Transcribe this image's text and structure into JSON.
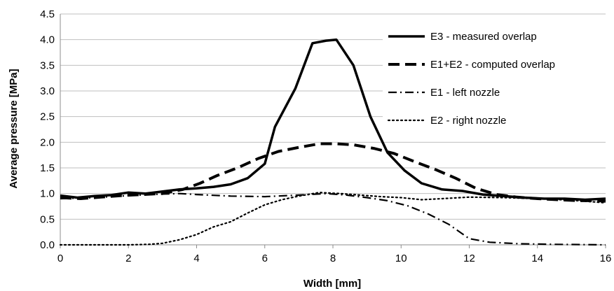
{
  "chart_data": {
    "type": "line",
    "xlabel": "Width [mm]",
    "ylabel": "Average pressure [MPa]",
    "xlim": [
      0,
      16
    ],
    "ylim": [
      0,
      4.5
    ],
    "x_ticks": [
      "0",
      "2",
      "4",
      "6",
      "8",
      "10",
      "12",
      "14",
      "16"
    ],
    "y_ticks": [
      "0.0",
      "0.5",
      "1.0",
      "1.5",
      "2.0",
      "2.5",
      "3.0",
      "3.5",
      "4.0",
      "4.5"
    ],
    "grid": "horizontal",
    "legend_position": "top-right",
    "series": [
      {
        "name": "E3 - measured overlap",
        "style": "solid",
        "points": [
          [
            0,
            0.96
          ],
          [
            0.5,
            0.92
          ],
          [
            1,
            0.95
          ],
          [
            1.5,
            0.97
          ],
          [
            2,
            1.02
          ],
          [
            2.5,
            1.0
          ],
          [
            3,
            1.04
          ],
          [
            3.5,
            1.08
          ],
          [
            4,
            1.1
          ],
          [
            4.5,
            1.13
          ],
          [
            5,
            1.18
          ],
          [
            5.5,
            1.3
          ],
          [
            6,
            1.58
          ],
          [
            6.3,
            2.3
          ],
          [
            6.9,
            3.05
          ],
          [
            7.4,
            3.93
          ],
          [
            7.8,
            3.98
          ],
          [
            8.1,
            4.0
          ],
          [
            8.6,
            3.5
          ],
          [
            9.1,
            2.5
          ],
          [
            9.6,
            1.8
          ],
          [
            10.1,
            1.45
          ],
          [
            10.6,
            1.2
          ],
          [
            11.2,
            1.08
          ],
          [
            11.8,
            1.05
          ],
          [
            12.4,
            0.98
          ],
          [
            13,
            0.95
          ],
          [
            13.6,
            0.92
          ],
          [
            14.2,
            0.9
          ],
          [
            14.8,
            0.9
          ],
          [
            15.4,
            0.88
          ],
          [
            16,
            0.9
          ]
        ]
      },
      {
        "name": "E1+E2 - computed overlap",
        "style": "dashed",
        "points": [
          [
            0,
            0.92
          ],
          [
            0.6,
            0.9
          ],
          [
            1.2,
            0.93
          ],
          [
            1.8,
            0.96
          ],
          [
            2.4,
            0.98
          ],
          [
            3,
            1.0
          ],
          [
            3.6,
            1.08
          ],
          [
            4.1,
            1.2
          ],
          [
            4.6,
            1.35
          ],
          [
            5.2,
            1.5
          ],
          [
            5.8,
            1.68
          ],
          [
            6.4,
            1.82
          ],
          [
            7,
            1.9
          ],
          [
            7.6,
            1.97
          ],
          [
            8.1,
            1.97
          ],
          [
            8.6,
            1.95
          ],
          [
            9.2,
            1.88
          ],
          [
            9.8,
            1.78
          ],
          [
            10.4,
            1.62
          ],
          [
            11,
            1.47
          ],
          [
            11.6,
            1.3
          ],
          [
            12.2,
            1.1
          ],
          [
            12.8,
            0.98
          ],
          [
            13.4,
            0.93
          ],
          [
            14,
            0.9
          ],
          [
            14.6,
            0.88
          ],
          [
            15.2,
            0.86
          ],
          [
            15.8,
            0.86
          ],
          [
            16,
            0.85
          ]
        ]
      },
      {
        "name": "E1 - left nozzle",
        "style": "dash-dot",
        "points": [
          [
            0,
            0.9
          ],
          [
            1,
            0.92
          ],
          [
            2,
            0.96
          ],
          [
            3,
            0.99
          ],
          [
            3.5,
            1.0
          ],
          [
            4,
            0.98
          ],
          [
            5,
            0.95
          ],
          [
            6,
            0.94
          ],
          [
            7,
            0.97
          ],
          [
            7.8,
            1.0
          ],
          [
            8.4,
            0.97
          ],
          [
            9,
            0.92
          ],
          [
            9.6,
            0.86
          ],
          [
            10.2,
            0.76
          ],
          [
            10.8,
            0.6
          ],
          [
            11.4,
            0.4
          ],
          [
            12,
            0.12
          ],
          [
            12.6,
            0.05
          ],
          [
            13.5,
            0.02
          ],
          [
            14.5,
            0.01
          ],
          [
            16,
            0.0
          ]
        ]
      },
      {
        "name": "E2 - right nozzle",
        "style": "dotted",
        "points": [
          [
            0,
            0.0
          ],
          [
            1,
            0.0
          ],
          [
            2,
            0.0
          ],
          [
            2.6,
            0.01
          ],
          [
            3,
            0.03
          ],
          [
            3.5,
            0.1
          ],
          [
            4,
            0.2
          ],
          [
            4.5,
            0.35
          ],
          [
            5,
            0.45
          ],
          [
            5.5,
            0.62
          ],
          [
            6,
            0.78
          ],
          [
            6.5,
            0.88
          ],
          [
            7,
            0.95
          ],
          [
            7.6,
            1.02
          ],
          [
            8.2,
            1.0
          ],
          [
            8.8,
            0.97
          ],
          [
            9.4,
            0.94
          ],
          [
            10,
            0.92
          ],
          [
            10.6,
            0.88
          ],
          [
            11.2,
            0.9
          ],
          [
            12,
            0.93
          ],
          [
            13,
            0.92
          ],
          [
            14,
            0.9
          ],
          [
            15,
            0.87
          ],
          [
            16,
            0.82
          ]
        ]
      }
    ]
  }
}
